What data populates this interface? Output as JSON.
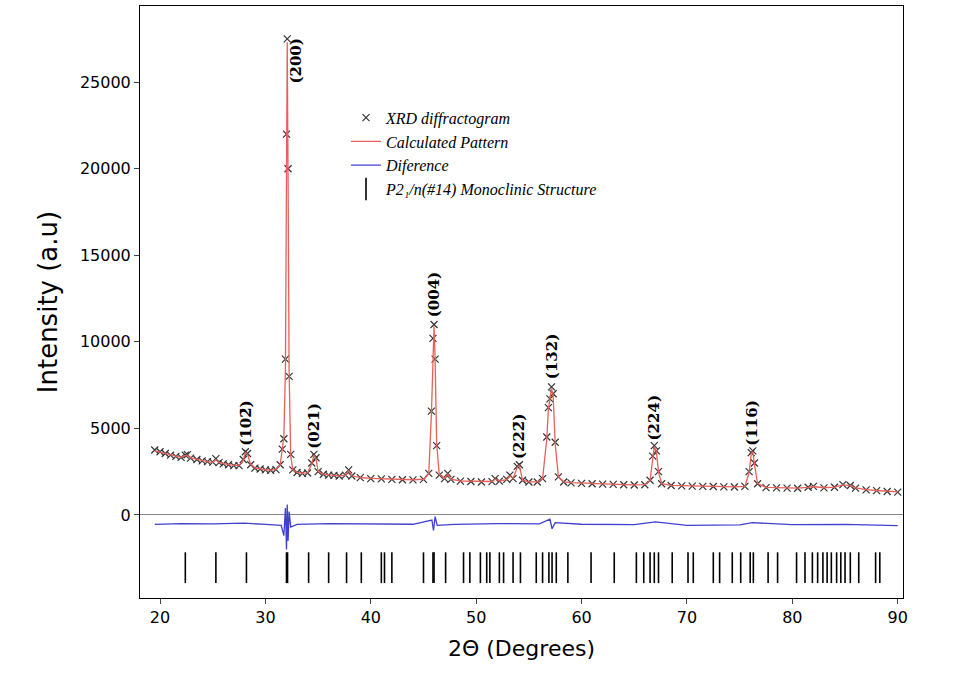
{
  "chart_data": {
    "type": "scatter",
    "xlabel": "2Θ (Degrees)",
    "ylabel": "Intensity (a.u)",
    "xlim": [
      18.1,
      90.5
    ],
    "ylim": [
      -4800,
      29400
    ],
    "xticks": [
      20,
      30,
      40,
      50,
      60,
      70,
      80,
      90
    ],
    "yticks": [
      0,
      5000,
      10000,
      15000,
      20000,
      25000
    ],
    "grid": false,
    "legend": "upper center",
    "x": [
      19.5,
      20.0,
      20.5,
      21.0,
      21.5,
      22.0,
      22.4,
      22.6,
      22.9,
      23.5,
      24.0,
      24.5,
      25.0,
      25.3,
      25.6,
      26.0,
      26.5,
      27.0,
      27.5,
      27.9,
      28.1,
      28.3,
      28.6,
      29.0,
      29.5,
      30.0,
      30.5,
      31.0,
      31.4,
      31.6,
      31.75,
      31.9,
      32.0,
      32.07,
      32.15,
      32.25,
      32.4,
      32.6,
      33.0,
      33.5,
      34.0,
      34.4,
      34.6,
      34.8,
      35.0,
      35.5,
      36.0,
      36.5,
      37.0,
      37.6,
      37.9,
      38.2,
      39.0,
      40.0,
      41.0,
      42.0,
      43.0,
      44.0,
      45.0,
      45.5,
      45.75,
      45.9,
      46.0,
      46.1,
      46.25,
      46.5,
      47.0,
      47.3,
      47.6,
      48.5,
      49.5,
      50.5,
      51.5,
      51.8,
      52.2,
      52.9,
      53.2,
      53.5,
      53.9,
      54.1,
      54.4,
      55.0,
      55.8,
      56.3,
      56.7,
      56.85,
      57.0,
      57.15,
      57.3,
      57.5,
      57.8,
      58.3,
      59.0,
      60.0,
      61.0,
      62.0,
      63.0,
      64.0,
      65.0,
      66.0,
      66.5,
      66.75,
      66.9,
      67.1,
      67.3,
      67.6,
      68.5,
      69.5,
      70.5,
      71.5,
      72.5,
      73.5,
      74.5,
      75.5,
      75.9,
      76.1,
      76.25,
      76.4,
      76.7,
      77.5,
      78.5,
      79.5,
      80.5,
      81.5,
      82.0,
      83.0,
      84.0,
      84.8,
      85.5,
      86.0,
      87.0,
      88.0,
      89.0,
      90.0
    ],
    "series": [
      {
        "name": "XRD diffractogram",
        "color": "#333333",
        "type": "scatter",
        "marker": "x",
        "values": [
          3750,
          3650,
          3550,
          3450,
          3380,
          3320,
          3450,
          3480,
          3280,
          3200,
          3120,
          3080,
          3050,
          3250,
          3020,
          2950,
          2900,
          2850,
          2850,
          3200,
          3650,
          3550,
          2900,
          2700,
          2650,
          2600,
          2580,
          2620,
          2900,
          3800,
          4400,
          9000,
          22000,
          27500,
          20000,
          8000,
          3500,
          2600,
          2450,
          2400,
          2420,
          3000,
          3500,
          3300,
          2500,
          2350,
          2300,
          2280,
          2250,
          2300,
          2600,
          2250,
          2150,
          2100,
          2080,
          2050,
          2030,
          2020,
          2050,
          2400,
          6000,
          10200,
          11000,
          9000,
          4000,
          2300,
          2100,
          2400,
          2050,
          1950,
          1930,
          1900,
          1920,
          2100,
          1950,
          2050,
          2300,
          2100,
          2800,
          2900,
          2000,
          1900,
          1900,
          2100,
          4500,
          6200,
          6700,
          7400,
          7000,
          4200,
          2200,
          1900,
          1850,
          1820,
          1800,
          1780,
          1760,
          1740,
          1730,
          1740,
          2000,
          3400,
          4000,
          3700,
          2500,
          1800,
          1700,
          1680,
          1660,
          1650,
          1640,
          1620,
          1610,
          1650,
          2500,
          3600,
          3700,
          3000,
          1800,
          1580,
          1560,
          1550,
          1540,
          1600,
          1650,
          1560,
          1600,
          1750,
          1700,
          1550,
          1450,
          1400,
          1350,
          1320
        ]
      },
      {
        "name": "Calculated Pattern",
        "color": "#e8605a",
        "type": "line",
        "line_style": "solid",
        "values": [
          3700,
          3620,
          3540,
          3460,
          3390,
          3330,
          3420,
          3440,
          3290,
          3200,
          3130,
          3080,
          3040,
          3200,
          3030,
          2960,
          2900,
          2860,
          2860,
          3150,
          3600,
          3500,
          2920,
          2720,
          2660,
          2610,
          2590,
          2630,
          2880,
          3700,
          4500,
          8400,
          22800,
          27300,
          19500,
          8300,
          3400,
          2620,
          2460,
          2410,
          2430,
          2950,
          3450,
          3250,
          2520,
          2360,
          2310,
          2290,
          2260,
          2290,
          2550,
          2260,
          2160,
          2110,
          2090,
          2060,
          2040,
          2030,
          2060,
          2380,
          5800,
          10000,
          10900,
          9100,
          4100,
          2320,
          2110,
          2350,
          2060,
          1960,
          1940,
          1910,
          1930,
          2080,
          1960,
          2040,
          2260,
          2110,
          2750,
          2850,
          2010,
          1910,
          1910,
          2080,
          4400,
          6100,
          6800,
          7300,
          6900,
          4100,
          2200,
          1910,
          1860,
          1830,
          1810,
          1790,
          1770,
          1750,
          1740,
          1750,
          1990,
          3350,
          3950,
          3650,
          2480,
          1810,
          1710,
          1690,
          1670,
          1660,
          1650,
          1630,
          1620,
          1650,
          2450,
          3550,
          3650,
          2950,
          1810,
          1590,
          1570,
          1560,
          1550,
          1590,
          1640,
          1570,
          1600,
          1730,
          1690,
          1560,
          1460,
          1410,
          1360,
          1330
        ]
      },
      {
        "name": "Diference",
        "color": "#4040d0",
        "type": "line",
        "line_style": "solid",
        "x": [
          19.5,
          22.0,
          25.0,
          28.0,
          30.0,
          31.5,
          31.75,
          31.9,
          32.0,
          32.07,
          32.15,
          32.25,
          32.4,
          33,
          36,
          40,
          44,
          45.8,
          45.95,
          46.1,
          46.3,
          48,
          52,
          56,
          57.0,
          57.2,
          57.5,
          60,
          65,
          67,
          70,
          75,
          76.2,
          80,
          85,
          90
        ],
        "values": [
          -550,
          -500,
          -520,
          -480,
          -550,
          -600,
          -1200,
          400,
          -2000,
          600,
          -1500,
          200,
          -700,
          -550,
          -500,
          -520,
          -540,
          -300,
          -900,
          -100,
          -600,
          -550,
          -500,
          -520,
          -250,
          -800,
          -450,
          -540,
          -560,
          -400,
          -600,
          -580,
          -450,
          -560,
          -550,
          -620
        ]
      },
      {
        "name": "P2₁/n(#14) Monoclinic Structure",
        "color": "#000000",
        "type": "scatter",
        "marker": "tick",
        "x": [
          22.4,
          25.3,
          28.2,
          32.0,
          32.1,
          34.1,
          36.0,
          37.7,
          39.1,
          41.0,
          41.3,
          42.0,
          45.0,
          45.9,
          46.0,
          47.1,
          48.8,
          49.4,
          50.4,
          51.0,
          51.3,
          52.2,
          52.6,
          53.5,
          54.2,
          55.7,
          56.3,
          56.9,
          57.2,
          57.6,
          58.7,
          60.9,
          63.1,
          65.2,
          65.9,
          66.5,
          66.9,
          67.3,
          68.6,
          70.1,
          70.6,
          72.5,
          73.1,
          74.3,
          75.1,
          76.0,
          76.3,
          77.7,
          78.6,
          80.4,
          81.2,
          81.9,
          82.4,
          82.9,
          83.3,
          83.7,
          84.2,
          84.6,
          85.0,
          85.5,
          86.3,
          87.9,
          88.3
        ],
        "values": [
          -3050,
          -3050,
          -3050,
          -3050,
          -3050,
          -3050,
          -3050,
          -3050,
          -3050,
          -3050,
          -3050,
          -3050,
          -3050,
          -3050,
          -3050,
          -3050,
          -3050,
          -3050,
          -3050,
          -3050,
          -3050,
          -3050,
          -3050,
          -3050,
          -3050,
          -3050,
          -3050,
          -3050,
          -3050,
          -3050,
          -3050,
          -3050,
          -3050,
          -3050,
          -3050,
          -3050,
          -3050,
          -3050,
          -3050,
          -3050,
          -3050,
          -3050,
          -3050,
          -3050,
          -3050,
          -3050,
          -3050,
          -3050,
          -3050,
          -3050,
          -3050,
          -3050,
          -3050,
          -3050,
          -3050,
          -3050,
          -3050,
          -3050,
          -3050,
          -3050,
          -3050,
          -3050,
          -3050
        ]
      }
    ],
    "annotations": [
      {
        "text": "(102̄)",
        "x": 28.2,
        "y": 3900
      },
      {
        "text": "(200)",
        "x": 32.9,
        "y": 24800
      },
      {
        "text": "(021)",
        "x": 34.6,
        "y": 3700
      },
      {
        "text": "(004)",
        "x": 46.0,
        "y": 11300
      },
      {
        "text": "(222̄)",
        "x": 54.05,
        "y": 3100
      },
      {
        "text": "(132)",
        "x": 57.15,
        "y": 7700
      },
      {
        "text": "(224)",
        "x": 66.9,
        "y": 4200
      },
      {
        "text": "(116)",
        "x": 76.2,
        "y": 3900
      }
    ]
  }
}
